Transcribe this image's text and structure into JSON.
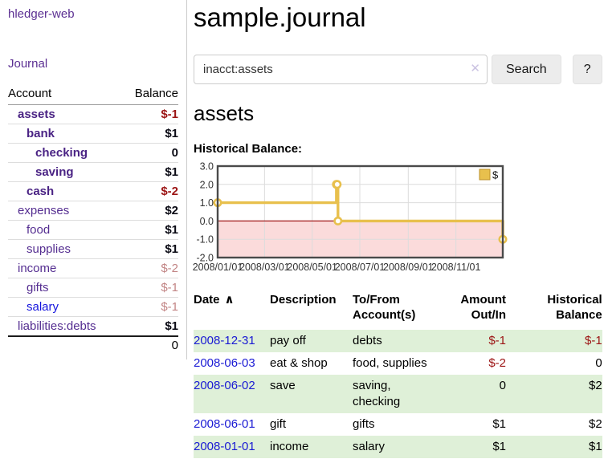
{
  "app": {
    "title": "hledger-web"
  },
  "sidebar": {
    "journal_label": "Journal",
    "accounts": {
      "header_account": "Account",
      "header_balance": "Balance",
      "rows": [
        {
          "name": "assets",
          "depth": 1,
          "bold": true,
          "balance": "$-1",
          "neg": "neg-strong"
        },
        {
          "name": "bank",
          "depth": 2,
          "bold": true,
          "balance": "$1",
          "neg": ""
        },
        {
          "name": "checking",
          "depth": 3,
          "bold": true,
          "balance": "0",
          "neg": ""
        },
        {
          "name": "saving",
          "depth": 3,
          "bold": true,
          "balance": "$1",
          "neg": ""
        },
        {
          "name": "cash",
          "depth": 2,
          "bold": true,
          "balance": "$-2",
          "neg": "neg-strong"
        },
        {
          "name": "expenses",
          "depth": 1,
          "bold": false,
          "balance": "$2",
          "neg": ""
        },
        {
          "name": "food",
          "depth": 2,
          "bold": false,
          "balance": "$1",
          "neg": ""
        },
        {
          "name": "supplies",
          "depth": 2,
          "bold": false,
          "balance": "$1",
          "neg": ""
        },
        {
          "name": "income",
          "depth": 1,
          "bold": false,
          "balance": "$-2",
          "neg": "neg-muted"
        },
        {
          "name": "gifts",
          "depth": 2,
          "bold": false,
          "balance": "$-1",
          "neg": "neg-muted"
        },
        {
          "name": "salary",
          "depth": 2,
          "bold": false,
          "balance": "$-1",
          "neg": "neg-muted",
          "blue": true
        },
        {
          "name": "liabilities:debts",
          "depth": 1,
          "bold": false,
          "balance": "$1",
          "neg": ""
        }
      ],
      "total": "0"
    }
  },
  "main": {
    "title": "sample.journal",
    "search": {
      "value": "inacct:assets",
      "clear_icon": "✕",
      "button_label": "Search",
      "help_label": "?"
    },
    "account_heading": "assets",
    "chart_label": "Historical Balance:",
    "register": {
      "headers": [
        "Date",
        "Description",
        "To/From Account(s)",
        "Amount Out/In",
        "Historical Balance"
      ],
      "sort_caret": "∧",
      "rows": [
        {
          "date": "2008-12-31",
          "description": "pay off",
          "accounts": "debts",
          "amount": "$-1",
          "amount_neg": true,
          "balance": "$-1",
          "balance_neg": true
        },
        {
          "date": "2008-06-03",
          "description": "eat & shop",
          "accounts": "food, supplies",
          "amount": "$-2",
          "amount_neg": true,
          "balance": "0",
          "balance_neg": false
        },
        {
          "date": "2008-06-02",
          "description": "save",
          "accounts": "saving, checking",
          "amount": "0",
          "amount_neg": false,
          "balance": "$2",
          "balance_neg": false
        },
        {
          "date": "2008-06-01",
          "description": "gift",
          "accounts": "gifts",
          "amount": "$1",
          "amount_neg": false,
          "balance": "$2",
          "balance_neg": false
        },
        {
          "date": "2008-01-01",
          "description": "income",
          "accounts": "salary",
          "amount": "$1",
          "amount_neg": false,
          "balance": "$1",
          "balance_neg": false
        }
      ]
    }
  },
  "chart_data": {
    "type": "line",
    "title": "Historical Balance:",
    "legend": "$",
    "ylim": [
      -2,
      3
    ],
    "x_range": [
      "2008-01-01",
      "2008-12-31"
    ],
    "y_ticks": [
      {
        "label": "3.0",
        "value": 3
      },
      {
        "label": "2.0",
        "value": 2
      },
      {
        "label": "1.0",
        "value": 1
      },
      {
        "label": "0.0",
        "value": 0
      },
      {
        "label": "-1.0",
        "value": -1
      },
      {
        "label": "-2.0",
        "value": -2
      }
    ],
    "x_ticks": [
      {
        "label": "2008/01/01",
        "date": "2008-01-01"
      },
      {
        "label": "2008/03/01",
        "date": "2008-03-01"
      },
      {
        "label": "2008/05/01",
        "date": "2008-05-01"
      },
      {
        "label": "2008/07/01",
        "date": "2008-07-01"
      },
      {
        "label": "2008/09/01",
        "date": "2008-09-01"
      },
      {
        "label": "2008/11/01",
        "date": "2008-11-01"
      }
    ],
    "series": [
      {
        "name": "$",
        "color": "#e8c04d",
        "points": [
          {
            "date": "2008-01-01",
            "value": 1
          },
          {
            "date": "2008-06-01",
            "value": 2
          },
          {
            "date": "2008-06-02",
            "value": 2
          },
          {
            "date": "2008-06-03",
            "value": 0
          },
          {
            "date": "2008-12-31",
            "value": -1
          }
        ]
      }
    ],
    "grid_color": "#dcdcdc",
    "zero_line_color": "#a01818",
    "negative_region_fill": "#fbdbdb",
    "border_color": "#4a4a4a"
  }
}
